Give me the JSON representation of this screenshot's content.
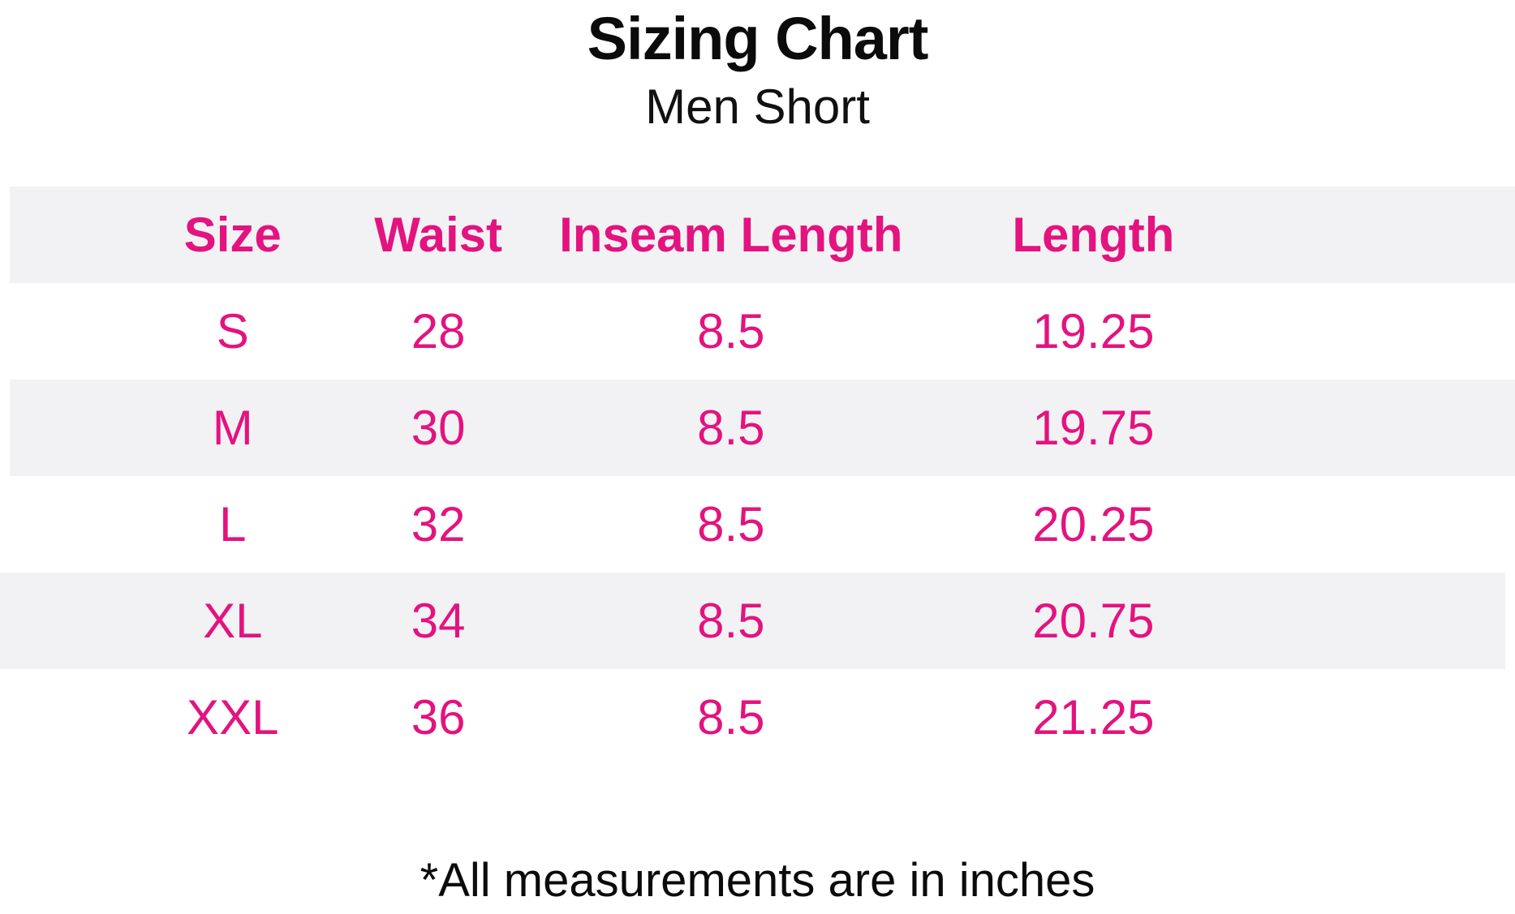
{
  "chart_data": {
    "type": "table",
    "title": "Sizing Chart",
    "subtitle": "Men Short",
    "columns": [
      "Size",
      "Waist",
      "Inseam Length",
      "Length"
    ],
    "rows": [
      [
        "S",
        28,
        8.5,
        19.25
      ],
      [
        "M",
        30,
        8.5,
        19.75
      ],
      [
        "L",
        32,
        8.5,
        20.25
      ],
      [
        "XL",
        34,
        8.5,
        20.75
      ],
      [
        "XXL",
        36,
        8.5,
        21.25
      ]
    ],
    "footnote": "*All measurements are in inches",
    "layout": {
      "striped_rows": true,
      "units": "inches"
    }
  },
  "colors": {
    "accent_pink": "#E3137F",
    "stripe_gray": "#F2F2F4",
    "text_black": "#0b0b0b",
    "background": "#ffffff"
  }
}
